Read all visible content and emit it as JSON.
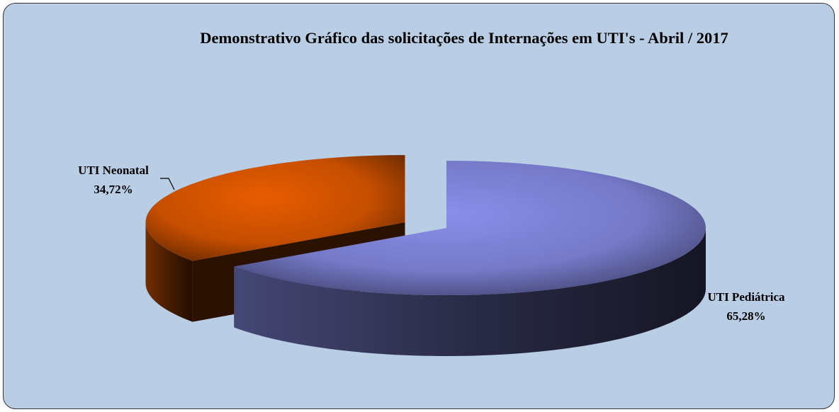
{
  "chart_data": {
    "type": "pie3d",
    "title": "Demonstrativo Gráfico das solicitações de Internações em UTI's - Abril / 2017",
    "categories": [
      "UTI Pediátrica",
      "UTI Neonatal"
    ],
    "values": [
      65.28,
      34.72
    ],
    "value_labels": [
      "65,28%",
      "34,72%"
    ],
    "colors": [
      "#8a8eea",
      "#e85c00"
    ]
  }
}
